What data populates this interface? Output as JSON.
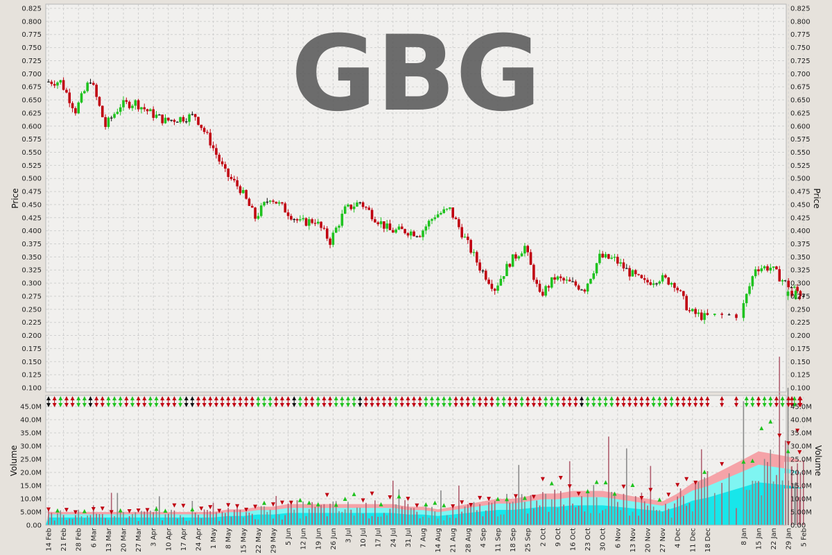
{
  "watermark": "GBG",
  "colors": {
    "up": "#1fc21f",
    "down": "#c00010",
    "neutral": "#111111",
    "volume_bar": "#8a8a8a",
    "volume_bar_down": "#b06070",
    "band_outer": "#f5a3a8",
    "band_mid": "#7ff5f2",
    "band_inner": "#18e6ea",
    "plot_bg": "#f1f0ee",
    "frame_bg": "#e6e2dc",
    "grid": "#cfcfcf"
  },
  "chart_data": [
    {
      "type": "ohlc",
      "panel": "price",
      "ylabel": "Price",
      "ylim": [
        0.1,
        0.825
      ],
      "yticks": [
        "0.100",
        "0.125",
        "0.150",
        "0.175",
        "0.200",
        "0.225",
        "0.250",
        "0.275",
        "0.300",
        "0.325",
        "0.350",
        "0.375",
        "0.400",
        "0.425",
        "0.450",
        "0.475",
        "0.500",
        "0.525",
        "0.550",
        "0.575",
        "0.600",
        "0.625",
        "0.650",
        "0.675",
        "0.700",
        "0.725",
        "0.750",
        "0.775",
        "0.800",
        "0.825"
      ],
      "dates": [
        "14 Feb",
        "21 Feb",
        "28 Feb",
        "6 Mar",
        "13 Mar",
        "20 Mar",
        "27 Mar",
        "3 Apr",
        "10 Apr",
        "17 Apr",
        "24 Apr",
        "1 May",
        "8 May",
        "15 May",
        "22 May",
        "29 May",
        "5 Jun",
        "12 Jun",
        "19 Jun",
        "26 Jun",
        "3 Jul",
        "10 Jul",
        "17 Jul",
        "24 Jul",
        "31 Jul",
        "7 Aug",
        "14 Aug",
        "21 Aug",
        "28 Aug",
        "4 Sep",
        "11 Sep",
        "18 Sep",
        "25 Sep",
        "2 Oct",
        "9 Oct",
        "16 Oct",
        "23 Oct",
        "30 Oct",
        "6 Nov",
        "13 Nov",
        "20 Nov",
        "27 Nov",
        "4 Dec",
        "11 Dec",
        "18 Dec",
        "8 Jan",
        "15 Jan",
        "22 Jan",
        "29 Jan",
        "5 Feb"
      ],
      "weekly_close": [
        0.685,
        0.63,
        0.69,
        0.6,
        0.64,
        0.645,
        0.625,
        0.61,
        0.615,
        0.62,
        0.57,
        0.51,
        0.48,
        0.425,
        0.465,
        0.44,
        0.415,
        0.42,
        0.38,
        0.44,
        0.455,
        0.425,
        0.4,
        0.4,
        0.395,
        0.43,
        0.44,
        0.385,
        0.33,
        0.29,
        0.34,
        0.37,
        0.275,
        0.31,
        0.3,
        0.29,
        0.35,
        0.345,
        0.32,
        0.3,
        0.31,
        0.3,
        0.245,
        0.235,
        0.24,
        0.33,
        0.33,
        0.3,
        0.28,
        0.275
      ]
    },
    {
      "type": "bar",
      "panel": "volume",
      "ylabel": "Volume",
      "ylim": [
        0,
        47000000
      ],
      "yticks": [
        "0.00",
        "5.00M",
        "10.0M",
        "15.0M",
        "20.0M",
        "25.0M",
        "30.0M",
        "35.0M",
        "40.0M",
        "45.0M"
      ],
      "peak_volume_M": 47,
      "band_upper_M": [
        5,
        5,
        5,
        5,
        5,
        5,
        5,
        5,
        5,
        5,
        5,
        5,
        6,
        6,
        7,
        7,
        8,
        8,
        8,
        8,
        8,
        8,
        8,
        8,
        7,
        7,
        6,
        7,
        8,
        9,
        10,
        10,
        11,
        12,
        12,
        13,
        13,
        13,
        12,
        11,
        10,
        9,
        12,
        16,
        18,
        25,
        28,
        27,
        26,
        24
      ]
    }
  ]
}
